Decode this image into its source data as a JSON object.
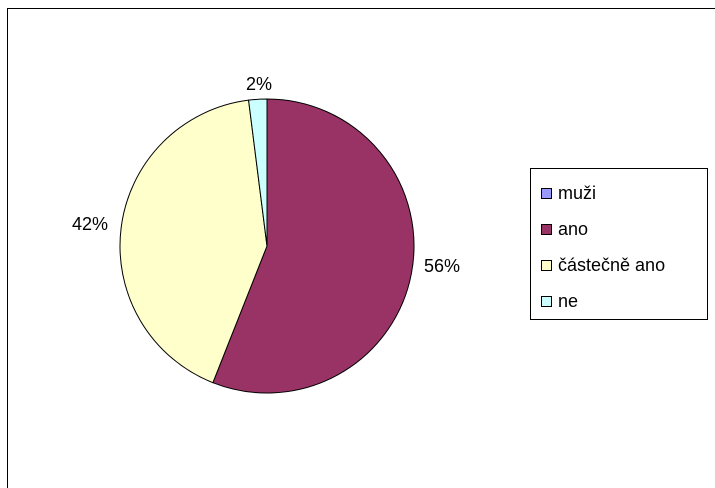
{
  "chart_data": {
    "type": "pie",
    "title": "",
    "categories": [
      "muži",
      "ano",
      "částečně ano",
      "ne"
    ],
    "values": [
      0,
      56,
      42,
      2
    ],
    "labels": [
      "",
      "56%",
      "42%",
      "2%"
    ],
    "colors": [
      "#9999ff",
      "#993366",
      "#ffffcc",
      "#ccffff"
    ],
    "legend_position": "right"
  }
}
